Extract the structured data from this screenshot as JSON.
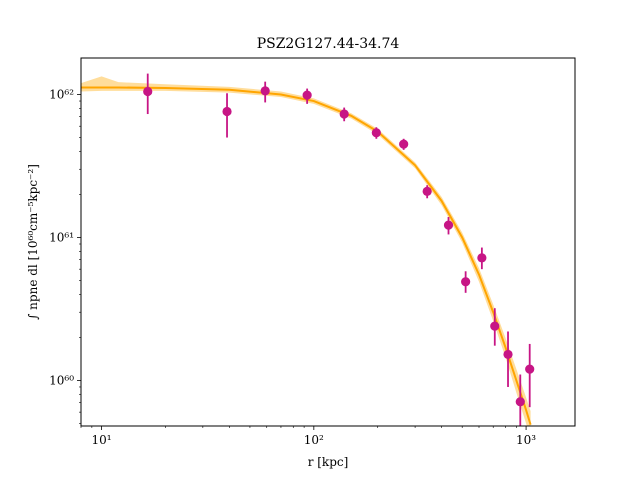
{
  "chart_data": {
    "type": "scatter",
    "title": "PSZ2G127.44-34.74",
    "xlabel": "r [kpc]",
    "ylabel": "∫ npne dl [10⁶⁰cm⁻⁵kpc⁻²]",
    "x_scale": "log",
    "y_scale": "log",
    "xlim": [
      8.0,
      1700
    ],
    "ylim": [
      4.8e+59,
      1.8e+62
    ],
    "x_ticks": [
      {
        "value": 10,
        "label": "10¹"
      },
      {
        "value": 100,
        "label": "10²"
      },
      {
        "value": 1000,
        "label": "10³"
      }
    ],
    "y_ticks": [
      {
        "value": 1e+60,
        "label": "10⁶⁰"
      },
      {
        "value": 1e+61,
        "label": "10⁶¹"
      },
      {
        "value": 1e+62,
        "label": "10⁶²"
      }
    ],
    "grid": false,
    "series": [
      {
        "type": "errorbar",
        "color": "#c71585",
        "points": [
          {
            "x": 16.5,
            "y": 1.05e+62,
            "ylo": 7.3e+61,
            "yhi": 1.4e+62
          },
          {
            "x": 39,
            "y": 7.6e+61,
            "ylo": 5e+61,
            "yhi": 1.02e+62
          },
          {
            "x": 59,
            "y": 1.06e+62,
            "ylo": 8.8e+61,
            "yhi": 1.23e+62
          },
          {
            "x": 93,
            "y": 9.9e+61,
            "ylo": 8.6e+61,
            "yhi": 1.1e+62
          },
          {
            "x": 139,
            "y": 7.3e+61,
            "ylo": 6.5e+61,
            "yhi": 8.1e+61
          },
          {
            "x": 197,
            "y": 5.4e+61,
            "ylo": 4.9e+61,
            "yhi": 5.9e+61
          },
          {
            "x": 265,
            "y": 4.5e+61,
            "ylo": 4.1e+61,
            "yhi": 4.9e+61
          },
          {
            "x": 342,
            "y": 2.1e+61,
            "ylo": 1.88e+61,
            "yhi": 2.32e+61
          },
          {
            "x": 431,
            "y": 1.22e+61,
            "ylo": 1.05e+61,
            "yhi": 1.39e+61
          },
          {
            "x": 519,
            "y": 4.9e+60,
            "ylo": 4.1e+60,
            "yhi": 5.8e+60
          },
          {
            "x": 619,
            "y": 7.2e+60,
            "ylo": 6e+60,
            "yhi": 8.5e+60
          },
          {
            "x": 712,
            "y": 2.4e+60,
            "ylo": 1.75e+60,
            "yhi": 3.2e+60
          },
          {
            "x": 822,
            "y": 1.52e+60,
            "ylo": 9e+59,
            "yhi": 2.2e+60
          },
          {
            "x": 939,
            "y": 7.1e+59,
            "ylo": 4.8e+59,
            "yhi": 1.1e+60
          },
          {
            "x": 1040,
            "y": 1.2e+60,
            "ylo": 6.5e+59,
            "yhi": 1.8e+60
          }
        ]
      },
      {
        "type": "line",
        "color": "#ffa500",
        "band_color": "#ffd27a",
        "points": [
          {
            "x": 8.0,
            "y": 1.12e+62,
            "lo": 1.05e+62,
            "hi": 1.2e+62
          },
          {
            "x": 10,
            "y": 1.12e+62,
            "lo": 1.06e+62,
            "hi": 1.34e+62
          },
          {
            "x": 12,
            "y": 1.12e+62,
            "lo": 1.06e+62,
            "hi": 1.22e+62
          },
          {
            "x": 20,
            "y": 1.11e+62,
            "lo": 1.06e+62,
            "hi": 1.18e+62
          },
          {
            "x": 40,
            "y": 1.08e+62,
            "lo": 1.03e+62,
            "hi": 1.13e+62
          },
          {
            "x": 70,
            "y": 1e+62,
            "lo": 9.6e+61,
            "hi": 1.05e+62
          },
          {
            "x": 100,
            "y": 9e+61,
            "lo": 8.6e+61,
            "hi": 9.4e+61
          },
          {
            "x": 150,
            "y": 7.1e+61,
            "lo": 6.8e+61,
            "hi": 7.4e+61
          },
          {
            "x": 200,
            "y": 5.5e+61,
            "lo": 5.25e+61,
            "hi": 5.75e+61
          },
          {
            "x": 300,
            "y": 3.2e+61,
            "lo": 3.05e+61,
            "hi": 3.35e+61
          },
          {
            "x": 400,
            "y": 1.8e+61,
            "lo": 1.68e+61,
            "hi": 1.92e+61
          },
          {
            "x": 500,
            "y": 1e+61,
            "lo": 9.2e+60,
            "hi": 1.08e+61
          },
          {
            "x": 600,
            "y": 5.5e+60,
            "lo": 4.9e+60,
            "hi": 6.1e+60
          },
          {
            "x": 700,
            "y": 3e+60,
            "lo": 2.6e+60,
            "hi": 3.4e+60
          },
          {
            "x": 800,
            "y": 1.7e+60,
            "lo": 1.45e+60,
            "hi": 1.98e+60
          },
          {
            "x": 900,
            "y": 1e+60,
            "lo": 8.2e+59,
            "hi": 1.2e+60
          },
          {
            "x": 1000,
            "y": 6.2e+59,
            "lo": 5e+59,
            "hi": 7.6e+59
          },
          {
            "x": 1050,
            "y": 4.9e+59,
            "lo": 3.9e+59,
            "hi": 6.1e+59
          }
        ]
      }
    ]
  }
}
